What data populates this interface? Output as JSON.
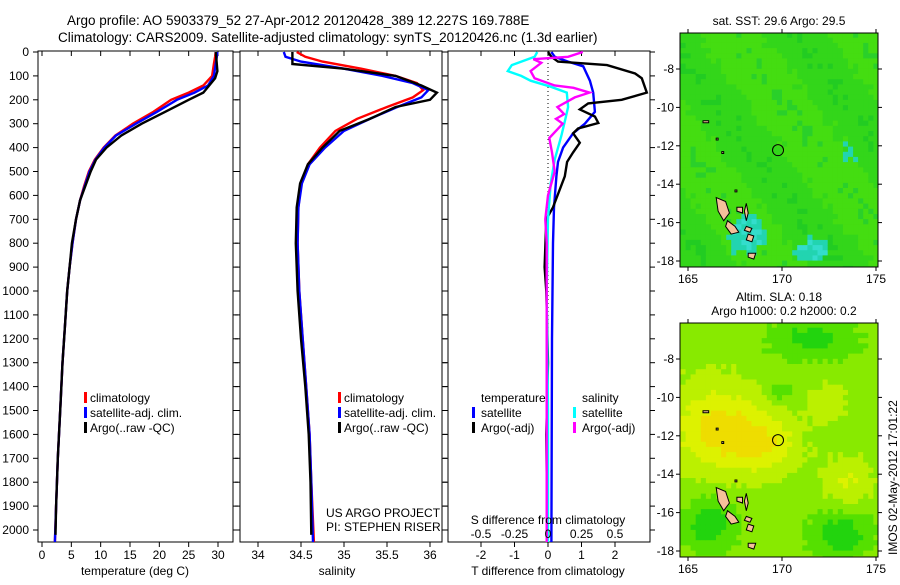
{
  "header": {
    "line1": "Argo profile: AO 5903379_52 27-Apr-2012 20120428_389 12.227S 169.788E",
    "line2": "Climatology: CARS2009. Satellite-adjusted climatology: synTS_20120426.nc (1.3d earlier)"
  },
  "colors": {
    "climatology": "#ff0000",
    "satellite": "#0000ff",
    "argo": "#000000",
    "sal_satellite": "#00ffff",
    "sal_argo": "#ff00ff"
  },
  "depth_ticks": [
    0,
    100,
    200,
    300,
    400,
    500,
    600,
    700,
    800,
    900,
    1000,
    1100,
    1200,
    1300,
    1400,
    1500,
    1600,
    1700,
    1800,
    1900,
    2000
  ],
  "chart_data": [
    {
      "type": "line",
      "name": "temperature-profile",
      "xlabel": "temperature (deg C)",
      "ylabel": "depth",
      "xlim": [
        -0.7,
        32.5
      ],
      "ylim": [
        2050,
        0
      ],
      "xticks": [
        "0",
        "5",
        "10",
        "15",
        "20",
        "25",
        "30"
      ],
      "legend": [
        "climatology",
        "satellite-adj. clim.",
        "Argo(..raw -QC)"
      ],
      "legend_position": "bottom-center",
      "series": [
        {
          "name": "climatology",
          "color": "#ff0000",
          "points": [
            [
              29.6,
              0
            ],
            [
              29.5,
              20
            ],
            [
              29.3,
              50
            ],
            [
              29.0,
              100
            ],
            [
              27.5,
              140
            ],
            [
              25,
              170
            ],
            [
              22,
              200
            ],
            [
              19,
              250
            ],
            [
              15.5,
              300
            ],
            [
              12.5,
              350
            ],
            [
              10.5,
              400
            ],
            [
              9,
              450
            ],
            [
              8,
              500
            ],
            [
              7.2,
              560
            ],
            [
              6.5,
              620
            ],
            [
              5.8,
              700
            ],
            [
              5.2,
              800
            ],
            [
              4.7,
              900
            ],
            [
              4.3,
              1000
            ],
            [
              3.9,
              1150
            ],
            [
              3.5,
              1300
            ],
            [
              3.1,
              1500
            ],
            [
              2.7,
              1700
            ],
            [
              2.4,
              1900
            ],
            [
              2.2,
              2050
            ]
          ]
        },
        {
          "name": "satellite-adj. clim.",
          "color": "#0000ff",
          "points": [
            [
              29.9,
              0
            ],
            [
              29.8,
              20
            ],
            [
              29.6,
              50
            ],
            [
              29.3,
              100
            ],
            [
              28.3,
              140
            ],
            [
              26,
              170
            ],
            [
              23,
              200
            ],
            [
              19.6,
              250
            ],
            [
              16,
              300
            ],
            [
              12.6,
              350
            ],
            [
              10.6,
              400
            ],
            [
              9.1,
              450
            ],
            [
              8.1,
              500
            ],
            [
              7.3,
              560
            ],
            [
              6.5,
              620
            ],
            [
              5.8,
              700
            ],
            [
              5.2,
              800
            ],
            [
              4.7,
              900
            ],
            [
              4.3,
              1000
            ],
            [
              3.9,
              1150
            ],
            [
              3.5,
              1300
            ],
            [
              3.1,
              1500
            ],
            [
              2.7,
              1700
            ],
            [
              2.4,
              1900
            ],
            [
              2.2,
              2050
            ]
          ]
        },
        {
          "name": "Argo(..raw -QC)",
          "color": "#000000",
          "points": [
            [
              29.6,
              0
            ],
            [
              29.7,
              20
            ],
            [
              29.8,
              50
            ],
            [
              29.9,
              80
            ],
            [
              29.5,
              110
            ],
            [
              28.5,
              140
            ],
            [
              27.5,
              170
            ],
            [
              25,
              200
            ],
            [
              21,
              250
            ],
            [
              17,
              300
            ],
            [
              13.5,
              350
            ],
            [
              11,
              400
            ],
            [
              9.2,
              450
            ],
            [
              8.3,
              500
            ],
            [
              7.4,
              560
            ],
            [
              6.5,
              620
            ],
            [
              5.8,
              700
            ],
            [
              5.1,
              800
            ],
            [
              4.7,
              900
            ],
            [
              4.3,
              1000
            ],
            [
              3.9,
              1150
            ],
            [
              3.5,
              1300
            ],
            [
              3.1,
              1500
            ],
            [
              2.7,
              1700
            ],
            [
              2.4,
              1900
            ],
            [
              2.3,
              2020
            ]
          ]
        }
      ]
    },
    {
      "type": "line",
      "name": "salinity-profile",
      "xlabel": "salinity",
      "xlim": [
        33.79,
        36.14
      ],
      "ylim": [
        2050,
        0
      ],
      "xticks": [
        "34",
        "34.5",
        "35",
        "35.5",
        "36"
      ],
      "legend": [
        "climatology",
        "satellite-adj. clim.",
        "Argo(..raw -QC)"
      ],
      "legend_position": "bottom-center",
      "annotation": [
        "US ARGO PROJECT",
        "PI: STEPHEN RISER"
      ],
      "series": [
        {
          "name": "climatology",
          "color": "#ff0000",
          "points": [
            [
              34.45,
              0
            ],
            [
              34.55,
              20
            ],
            [
              34.75,
              40
            ],
            [
              35.2,
              70
            ],
            [
              35.6,
              100
            ],
            [
              35.85,
              130
            ],
            [
              35.92,
              160
            ],
            [
              35.8,
              190
            ],
            [
              35.5,
              230
            ],
            [
              35.15,
              280
            ],
            [
              34.9,
              330
            ],
            [
              34.72,
              400
            ],
            [
              34.58,
              470
            ],
            [
              34.5,
              550
            ],
            [
              34.47,
              650
            ],
            [
              34.46,
              800
            ],
            [
              34.48,
              1000
            ],
            [
              34.52,
              1200
            ],
            [
              34.56,
              1400
            ],
            [
              34.6,
              1600
            ],
            [
              34.62,
              1800
            ],
            [
              34.65,
              2050
            ]
          ]
        },
        {
          "name": "satellite-adj. clim.",
          "color": "#0000ff",
          "points": [
            [
              34.3,
              0
            ],
            [
              34.32,
              20
            ],
            [
              34.5,
              40
            ],
            [
              35.0,
              70
            ],
            [
              35.45,
              100
            ],
            [
              35.8,
              130
            ],
            [
              35.98,
              160
            ],
            [
              35.9,
              190
            ],
            [
              35.62,
              230
            ],
            [
              35.3,
              280
            ],
            [
              35.0,
              330
            ],
            [
              34.78,
              400
            ],
            [
              34.6,
              470
            ],
            [
              34.51,
              550
            ],
            [
              34.47,
              650
            ],
            [
              34.46,
              800
            ],
            [
              34.48,
              1000
            ],
            [
              34.52,
              1200
            ],
            [
              34.56,
              1400
            ],
            [
              34.6,
              1600
            ],
            [
              34.62,
              1800
            ],
            [
              34.64,
              2050
            ]
          ]
        },
        {
          "name": "Argo(..raw -QC)",
          "color": "#000000",
          "points": [
            [
              34.4,
              0
            ],
            [
              34.4,
              50
            ],
            [
              35.0,
              70
            ],
            [
              35.6,
              100
            ],
            [
              35.9,
              140
            ],
            [
              36.08,
              170
            ],
            [
              36.0,
              200
            ],
            [
              35.6,
              230
            ],
            [
              35.3,
              280
            ],
            [
              34.95,
              330
            ],
            [
              34.75,
              400
            ],
            [
              34.58,
              470
            ],
            [
              34.49,
              550
            ],
            [
              34.45,
              650
            ],
            [
              34.44,
              800
            ],
            [
              34.46,
              1000
            ],
            [
              34.5,
              1200
            ],
            [
              34.55,
              1400
            ],
            [
              34.59,
              1600
            ],
            [
              34.61,
              1800
            ],
            [
              34.62,
              2020
            ]
          ]
        }
      ]
    },
    {
      "type": "line",
      "name": "difference-profile",
      "xlabel": "T difference from climatology",
      "xlabel2": "S difference from climatology",
      "xlim": [
        -2.99,
        3.04
      ],
      "ylim": [
        2050,
        0
      ],
      "xticks": [
        "-2",
        "-1",
        "0",
        "1",
        "2"
      ],
      "xticks2": [
        "-0.5",
        "-0.25",
        "0",
        "0.25",
        "0.5"
      ],
      "legend_headers": [
        "temperature",
        "salinity"
      ],
      "legend": [
        "satellite",
        "Argo(-adj)",
        "satellite",
        "Argo(-adj)"
      ],
      "legend_position": "bottom-center",
      "series": [
        {
          "name": "temperature satellite",
          "var": "T",
          "color": "#0000ff",
          "points": [
            [
              0.1,
              0
            ],
            [
              0.2,
              20
            ],
            [
              0.6,
              40
            ],
            [
              1.05,
              60
            ],
            [
              1.25,
              120
            ],
            [
              1.35,
              170
            ],
            [
              1.4,
              250
            ],
            [
              1.1,
              300
            ],
            [
              0.75,
              340
            ],
            [
              0.45,
              400
            ],
            [
              0.3,
              460
            ],
            [
              0.25,
              520
            ],
            [
              0.18,
              650
            ],
            [
              0.15,
              800
            ],
            [
              0.12,
              1200
            ],
            [
              0.1,
              2050
            ]
          ]
        },
        {
          "name": "temperature Argo(-adj)",
          "var": "T",
          "color": "#000000",
          "points": [
            [
              0,
              0
            ],
            [
              0.1,
              20
            ],
            [
              0.3,
              40
            ],
            [
              1.76,
              55
            ],
            [
              2.6,
              90
            ],
            [
              2.8,
              110
            ],
            [
              2.95,
              170
            ],
            [
              2.2,
              200
            ],
            [
              1.2,
              215
            ],
            [
              0.95,
              240
            ],
            [
              1.4,
              270
            ],
            [
              1.5,
              297
            ],
            [
              0.9,
              320
            ],
            [
              0.75,
              340
            ],
            [
              0.95,
              380
            ],
            [
              0.75,
              420
            ],
            [
              0.57,
              460
            ],
            [
              0.5,
              520
            ],
            [
              0.15,
              650
            ],
            [
              -0.05,
              700
            ],
            [
              -0.1,
              900
            ],
            [
              -0.05,
              1000
            ],
            [
              0.0,
              1300
            ],
            [
              -0.05,
              1600
            ],
            [
              -0.02,
              2000
            ]
          ]
        },
        {
          "name": "salinity satellite",
          "var": "S",
          "color": "#00ffff",
          "points": [
            [
              -0.08,
              0
            ],
            [
              -0.1,
              20
            ],
            [
              -0.27,
              55
            ],
            [
              -0.3,
              80
            ],
            [
              -0.2,
              100
            ],
            [
              -0.13,
              120
            ],
            [
              0.02,
              145
            ],
            [
              0.14,
              170
            ],
            [
              0.15,
              230
            ],
            [
              0.13,
              280
            ],
            [
              0.1,
              350
            ],
            [
              0.05,
              450
            ],
            [
              0.02,
              550
            ],
            [
              0.0,
              700
            ],
            [
              -0.01,
              1000
            ],
            [
              0.0,
              1500
            ],
            [
              0.0,
              2050
            ]
          ]
        },
        {
          "name": "salinity Argo(-adj)",
          "var": "S",
          "color": "#ff00ff",
          "points": [
            [
              0.26,
              0
            ],
            [
              0.15,
              20
            ],
            [
              -0.11,
              30
            ],
            [
              -0.05,
              45
            ],
            [
              -0.13,
              80
            ],
            [
              -0.1,
              110
            ],
            [
              0.05,
              140
            ],
            [
              0.19,
              150
            ],
            [
              0.31,
              170
            ],
            [
              0.2,
              190
            ],
            [
              0.07,
              230
            ],
            [
              0.12,
              260
            ],
            [
              0.06,
              280
            ],
            [
              0.11,
              300
            ],
            [
              0.01,
              360
            ],
            [
              0.03,
              420
            ],
            [
              0.05,
              500
            ],
            [
              0.0,
              600
            ],
            [
              -0.02,
              700
            ],
            [
              -0.01,
              800
            ],
            [
              -0.01,
              1100
            ],
            [
              -0.01,
              1500
            ],
            [
              -0.01,
              2050
            ]
          ]
        }
      ]
    },
    {
      "type": "heatmap",
      "name": "sst-map",
      "title": "sat. SST: 29.6 Argo: 29.5",
      "xlim": [
        164.6,
        175.1
      ],
      "ylim": [
        -18.2,
        -6.1
      ],
      "xticks": [
        "165",
        "170",
        "175"
      ],
      "yticks": [
        "-8",
        "-10",
        "-12",
        "-14",
        "-16",
        "-18"
      ],
      "marker": {
        "lon": 169.788,
        "lat": -12.227
      }
    },
    {
      "type": "heatmap",
      "name": "sla-map",
      "title": "Altim. SLA: 0.18",
      "subtitle": "Argo h1000: 0.2 h2000: 0.2",
      "xlim": [
        164.6,
        175.1
      ],
      "ylim": [
        -18.2,
        -6.1
      ],
      "xticks": [
        "165",
        "170",
        "175"
      ],
      "yticks": [
        "-8",
        "-10",
        "-12",
        "-14",
        "-16",
        "-18"
      ],
      "marker": {
        "lon": 169.788,
        "lat": -12.227
      }
    }
  ],
  "footer": {
    "stamp": "IMOS 02-May-2012 17:01:22"
  }
}
